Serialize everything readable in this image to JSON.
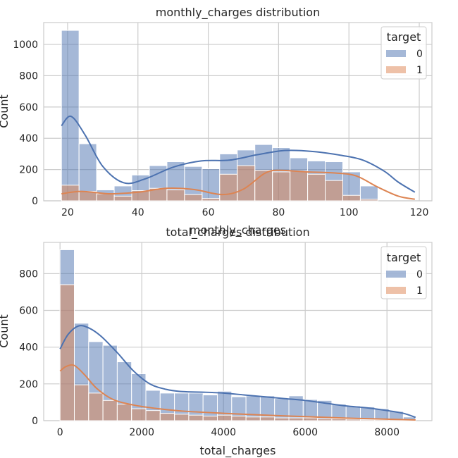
{
  "colors": {
    "target_0": "#4c72b0",
    "target_1": "#dd8452",
    "grid": "#cccccc",
    "axes_edge": "#cccccc"
  },
  "chart_data": [
    {
      "type": "bar",
      "title": "monthly_charges distribution",
      "xlabel": "monthly_charges",
      "ylabel": "Count",
      "xlim": [
        13.2,
        123.6
      ],
      "ylim": [
        0,
        1140
      ],
      "xticks": [
        20,
        40,
        60,
        80,
        100,
        120
      ],
      "yticks": [
        0,
        200,
        400,
        600,
        800,
        1000
      ],
      "grid": true,
      "legend": {
        "title": "target",
        "position": "top-right",
        "entries": [
          "0",
          "1"
        ]
      },
      "bin_edges": [
        18.25,
        23.25,
        28.25,
        33.25,
        38.25,
        43.25,
        48.25,
        53.25,
        58.25,
        63.25,
        68.25,
        73.25,
        78.25,
        83.25,
        88.25,
        93.25,
        98.25,
        103.25,
        108.25,
        113.25,
        118.75
      ],
      "series": [
        {
          "name": "0",
          "values": [
            1090,
            365,
            70,
            95,
            165,
            225,
            250,
            220,
            205,
            300,
            325,
            360,
            340,
            275,
            255,
            250,
            185,
            95,
            0,
            0
          ],
          "kde": [
            [
              18.25,
              480
            ],
            [
              21,
              540
            ],
            [
              25,
              420
            ],
            [
              30,
              220
            ],
            [
              36,
              115
            ],
            [
              42,
              140
            ],
            [
              50,
              215
            ],
            [
              58,
              255
            ],
            [
              66,
              260
            ],
            [
              74,
              295
            ],
            [
              82,
              322
            ],
            [
              90,
              315
            ],
            [
              98,
              290
            ],
            [
              104,
              260
            ],
            [
              110,
              190
            ],
            [
              114,
              120
            ],
            [
              118.75,
              55
            ]
          ]
        },
        {
          "name": "1",
          "values": [
            100,
            60,
            45,
            30,
            65,
            80,
            70,
            40,
            15,
            170,
            225,
            195,
            185,
            190,
            170,
            130,
            35,
            10,
            0,
            0
          ],
          "kde": [
            [
              18.25,
              45
            ],
            [
              24,
              60
            ],
            [
              32,
              45
            ],
            [
              40,
              55
            ],
            [
              48,
              80
            ],
            [
              56,
              72
            ],
            [
              64,
              40
            ],
            [
              70,
              75
            ],
            [
              76,
              175
            ],
            [
              80,
              195
            ],
            [
              88,
              185
            ],
            [
              96,
              178
            ],
            [
              102,
              160
            ],
            [
              108,
              90
            ],
            [
              114,
              30
            ],
            [
              118.75,
              10
            ]
          ]
        }
      ]
    },
    {
      "type": "bar",
      "title": "total_charges distribution",
      "xlabel": "total_charges",
      "ylabel": "Count",
      "xlim": [
        -400,
        9100
      ],
      "ylim": [
        0,
        970
      ],
      "xticks": [
        0,
        2000,
        4000,
        6000,
        8000
      ],
      "yticks": [
        0,
        200,
        400,
        600,
        800
      ],
      "grid": true,
      "legend": {
        "title": "target",
        "position": "top-right",
        "entries": [
          "0",
          "1"
        ]
      },
      "bin_edges": [
        0,
        350,
        700,
        1050,
        1400,
        1750,
        2100,
        2450,
        2800,
        3150,
        3500,
        3850,
        4200,
        4550,
        4900,
        5250,
        5600,
        5950,
        6300,
        6650,
        7000,
        7350,
        7700,
        8050,
        8400,
        8700
      ],
      "series": [
        {
          "name": "0",
          "values": [
            930,
            530,
            430,
            410,
            320,
            255,
            165,
            150,
            150,
            150,
            140,
            160,
            130,
            135,
            135,
            120,
            135,
            115,
            110,
            90,
            80,
            75,
            65,
            50,
            20
          ],
          "kde": [
            [
              0,
              390
            ],
            [
              200,
              470
            ],
            [
              450,
              515
            ],
            [
              700,
              505
            ],
            [
              1000,
              460
            ],
            [
              1400,
              370
            ],
            [
              1800,
              270
            ],
            [
              2200,
              200
            ],
            [
              2600,
              170
            ],
            [
              3000,
              158
            ],
            [
              3500,
              155
            ],
            [
              4000,
              150
            ],
            [
              4500,
              140
            ],
            [
              5000,
              130
            ],
            [
              5500,
              120
            ],
            [
              6000,
              110
            ],
            [
              6500,
              95
            ],
            [
              7000,
              80
            ],
            [
              7500,
              70
            ],
            [
              8000,
              55
            ],
            [
              8400,
              40
            ],
            [
              8700,
              18
            ]
          ]
        },
        {
          "name": "1",
          "values": [
            740,
            195,
            150,
            110,
            90,
            65,
            55,
            40,
            35,
            30,
            25,
            30,
            25,
            20,
            20,
            15,
            15,
            15,
            10,
            10,
            8,
            5,
            5,
            5,
            3
          ],
          "kde": [
            [
              0,
              270
            ],
            [
              150,
              295
            ],
            [
              350,
              300
            ],
            [
              600,
              250
            ],
            [
              900,
              175
            ],
            [
              1300,
              115
            ],
            [
              1800,
              85
            ],
            [
              2400,
              65
            ],
            [
              3000,
              52
            ],
            [
              4000,
              40
            ],
            [
              5000,
              30
            ],
            [
              6000,
              22
            ],
            [
              7000,
              14
            ],
            [
              8000,
              8
            ],
            [
              8700,
              4
            ]
          ]
        }
      ]
    }
  ]
}
